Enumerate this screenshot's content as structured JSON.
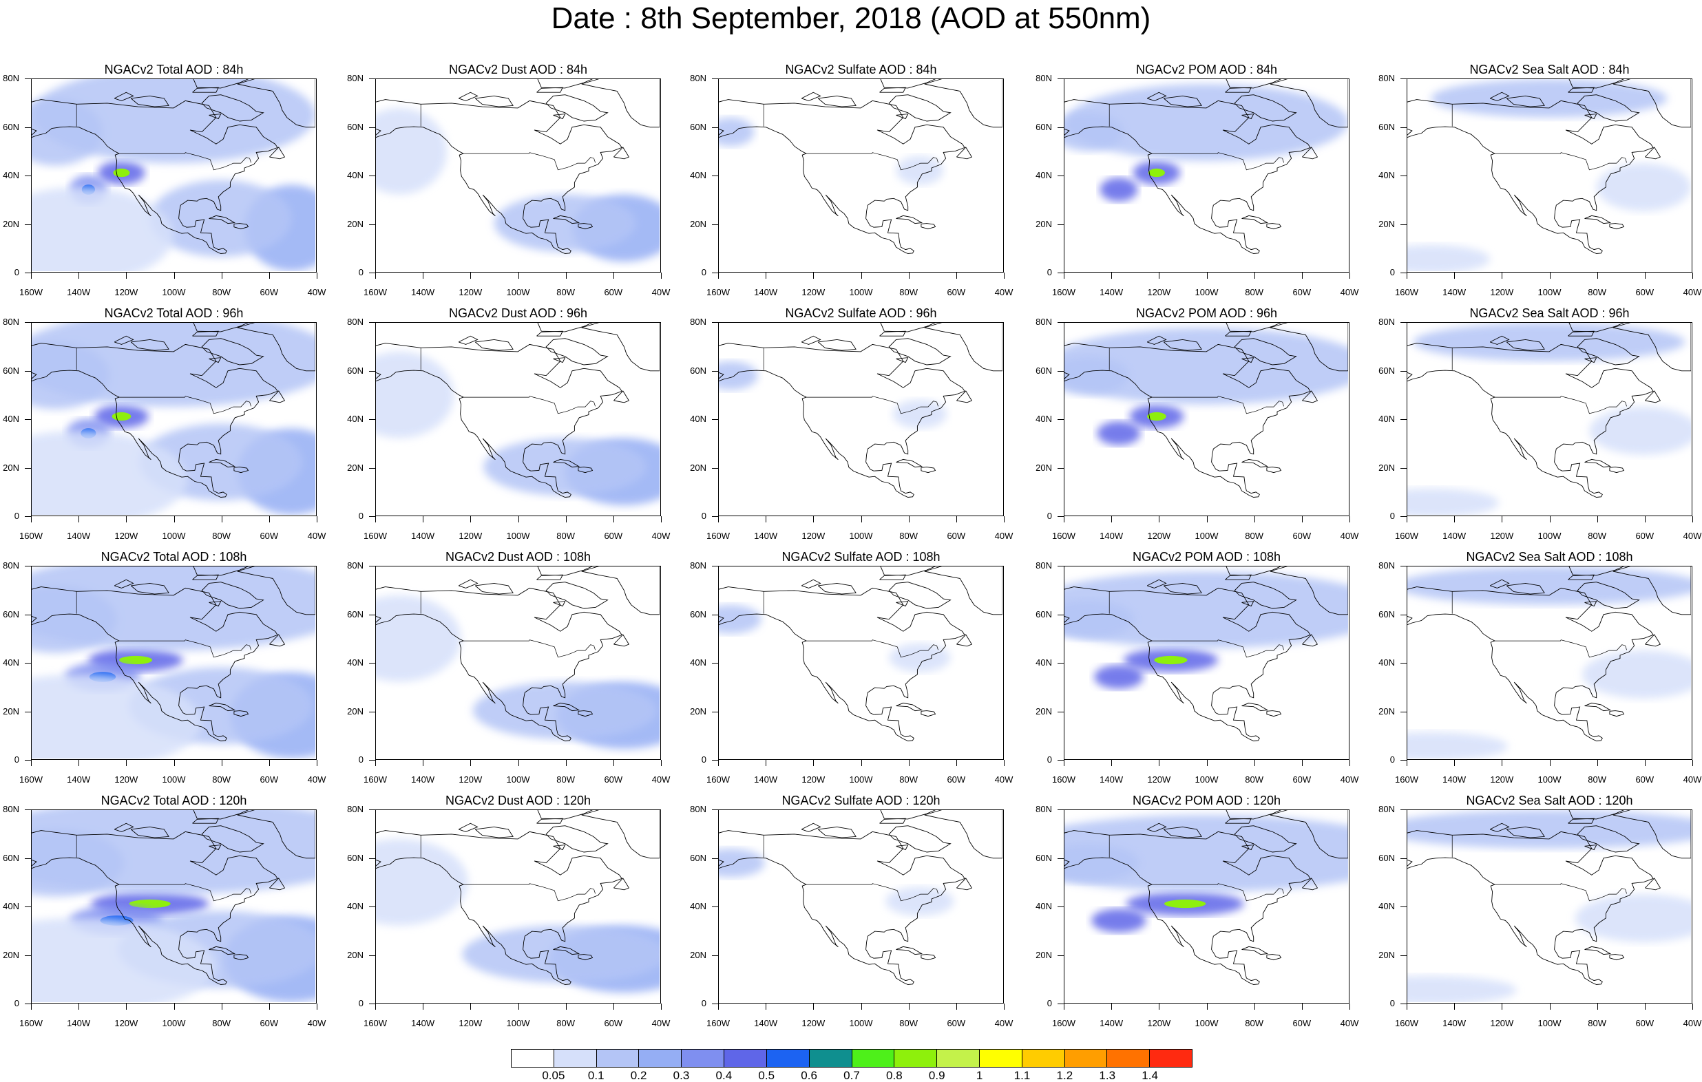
{
  "title": "Date : 8th September, 2018 (AOD at 550nm)",
  "panel_titles": [
    [
      "NGACv2 Total AOD : 84h",
      "NGACv2 Dust AOD : 84h",
      "NGACv2 Sulfate AOD : 84h",
      "NGACv2 POM AOD : 84h",
      "NGACv2 Sea Salt AOD : 84h"
    ],
    [
      "NGACv2 Total AOD : 96h",
      "NGACv2 Dust AOD : 96h",
      "NGACv2 Sulfate AOD : 96h",
      "NGACv2 POM AOD : 96h",
      "NGACv2 Sea Salt AOD : 96h"
    ],
    [
      "NGACv2 Total AOD : 108h",
      "NGACv2 Dust AOD : 108h",
      "NGACv2 Sulfate AOD : 108h",
      "NGACv2 POM AOD : 108h",
      "NGACv2 Sea Salt AOD : 108h"
    ],
    [
      "NGACv2 Total AOD : 120h",
      "NGACv2 Dust AOD : 120h",
      "NGACv2 Sulfate AOD : 120h",
      "NGACv2 POM AOD : 120h",
      "NGACv2 Sea Salt  AOD : 120h"
    ]
  ],
  "lat_labels": [
    "80N",
    "60N",
    "40N",
    "20N",
    "0"
  ],
  "lon_labels": [
    "160W",
    "140W",
    "120W",
    "100W",
    "80W",
    "60W",
    "40W"
  ],
  "colorbar": {
    "labels": [
      "0.05",
      "0.1",
      "0.2",
      "0.3",
      "0.4",
      "0.5",
      "0.6",
      "0.7",
      "0.8",
      "0.9",
      "1",
      "1.1",
      "1.2",
      "1.3",
      "1.4"
    ],
    "colors": [
      "#ffffff",
      "#d6e0fa",
      "#b4c5f6",
      "#95aef4",
      "#7f8ff0",
      "#5f66e8",
      "#1c63f2",
      "#0f8f8f",
      "#4ef01a",
      "#8ef00c",
      "#c4f24a",
      "#ffff00",
      "#ffcc00",
      "#ff9e00",
      "#ff7200",
      "#ff2a10"
    ]
  },
  "chart_data": {
    "type": "heatmap",
    "map_extent": {
      "lon": [
        -160,
        -40
      ],
      "lat": [
        0,
        80
      ]
    },
    "rows": [
      "84h",
      "96h",
      "108h",
      "120h"
    ],
    "columns": [
      "Total",
      "Dust",
      "Sulfate",
      "POM",
      "Sea Salt"
    ],
    "plumes": {
      "Total": [
        {
          "lon": -122,
          "lat": 41,
          "w": 10,
          "h": 5,
          "v": 0.8
        },
        {
          "lon": -136,
          "lat": 34,
          "w": 8,
          "h": 6,
          "v": 0.55
        },
        {
          "lon": -50,
          "lat": 18,
          "w": 20,
          "h": 18,
          "v": 0.25
        },
        {
          "lon": -80,
          "lat": 22,
          "w": 30,
          "h": 16,
          "v": 0.15
        },
        {
          "lon": -150,
          "lat": 58,
          "w": 20,
          "h": 14,
          "v": 0.12
        },
        {
          "lon": -100,
          "lat": 65,
          "w": 60,
          "h": 20,
          "v": 0.12
        },
        {
          "lon": -140,
          "lat": 15,
          "w": 40,
          "h": 20,
          "v": 0.08
        }
      ],
      "Dust": [
        {
          "lon": -55,
          "lat": 18,
          "w": 22,
          "h": 14,
          "v": 0.22
        },
        {
          "lon": -80,
          "lat": 20,
          "w": 30,
          "h": 12,
          "v": 0.1
        },
        {
          "lon": -150,
          "lat": 50,
          "w": 20,
          "h": 18,
          "v": 0.07
        }
      ],
      "Sulfate": [
        {
          "lon": -155,
          "lat": 58,
          "w": 10,
          "h": 6,
          "v": 0.1
        },
        {
          "lon": -75,
          "lat": 42,
          "w": 10,
          "h": 6,
          "v": 0.08
        }
      ],
      "POM": [
        {
          "lon": -121,
          "lat": 41,
          "w": 10,
          "h": 5,
          "v": 0.8
        },
        {
          "lon": -137,
          "lat": 34,
          "w": 8,
          "h": 5,
          "v": 0.45
        },
        {
          "lon": -100,
          "lat": 62,
          "w": 60,
          "h": 16,
          "v": 0.15
        },
        {
          "lon": -150,
          "lat": 58,
          "w": 15,
          "h": 8,
          "v": 0.12
        }
      ],
      "SeaSalt": [
        {
          "lon": -100,
          "lat": 72,
          "w": 50,
          "h": 8,
          "v": 0.1
        },
        {
          "lon": -60,
          "lat": 35,
          "w": 20,
          "h": 10,
          "v": 0.08
        },
        {
          "lon": -150,
          "lat": 5,
          "w": 25,
          "h": 6,
          "v": 0.07
        }
      ]
    }
  }
}
